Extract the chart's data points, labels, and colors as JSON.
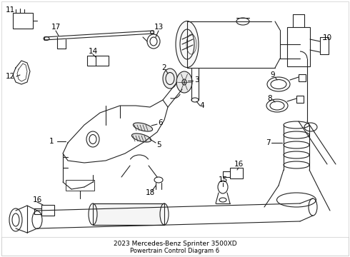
{
  "title": "2023 Mercedes-Benz Sprinter 3500XD",
  "subtitle": "Powertrain Control Diagram 6",
  "bg_color": "#ffffff",
  "line_color": "#222222",
  "label_color": "#000000",
  "figsize": [
    4.9,
    3.6
  ],
  "dpi": 100
}
